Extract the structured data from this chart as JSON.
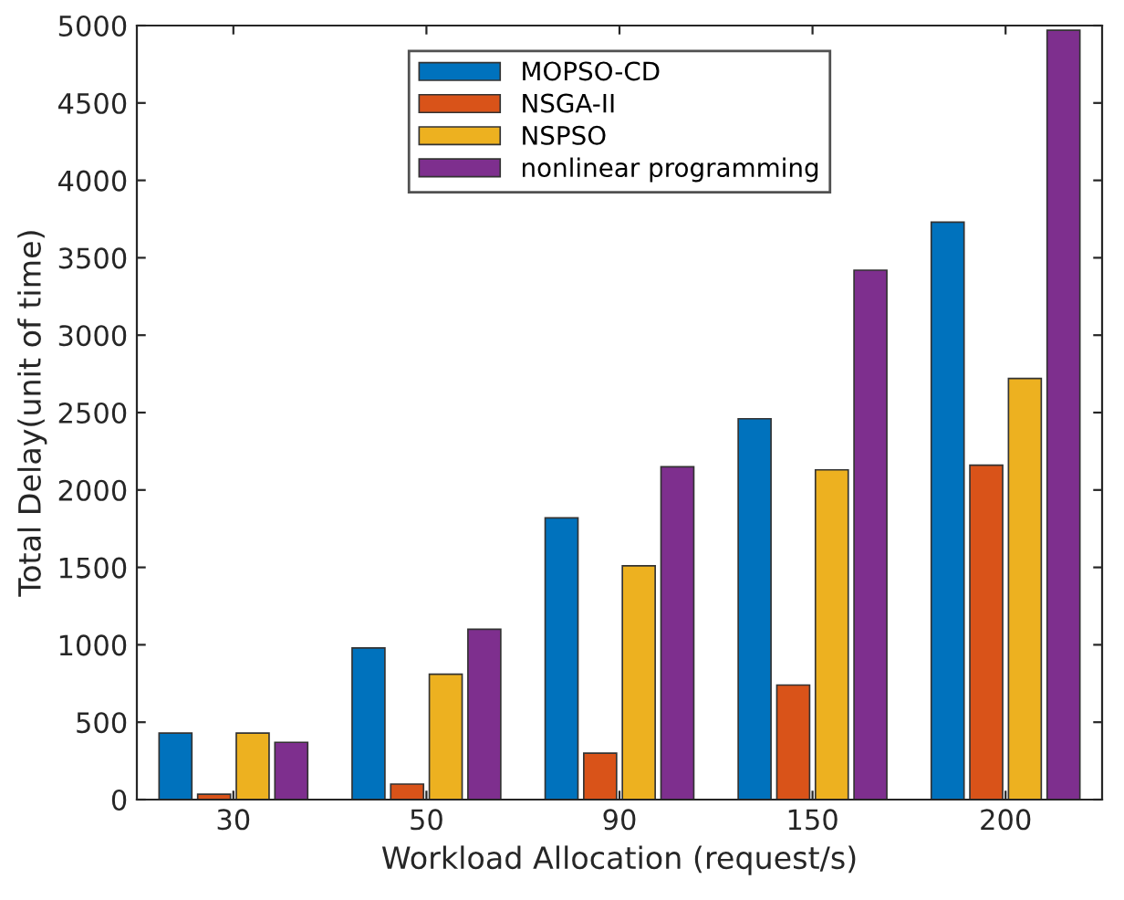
{
  "chart_data": {
    "type": "bar",
    "xlabel": "Workload Allocation (request/s)",
    "ylabel": "Total Delay(unit of time)",
    "categories": [
      "30",
      "50",
      "90",
      "150",
      "200"
    ],
    "series": [
      {
        "name": "MOPSO-CD",
        "color": "#0072bd",
        "values": [
          430,
          980,
          1820,
          2460,
          3730
        ]
      },
      {
        "name": "NSGA-II",
        "color": "#d95319",
        "values": [
          35,
          100,
          300,
          740,
          2160
        ]
      },
      {
        "name": "NSPSO",
        "color": "#edb120",
        "values": [
          430,
          810,
          1510,
          2130,
          2720
        ]
      },
      {
        "name": "nonlinear programming",
        "color": "#7e2f8e",
        "values": [
          370,
          1100,
          2150,
          3420,
          4970
        ]
      }
    ],
    "ylim": [
      0,
      5000
    ],
    "yticks": [
      0,
      500,
      1000,
      1500,
      2000,
      2500,
      3000,
      3500,
      4000,
      4500,
      5000
    ],
    "legend": "top",
    "grid": false
  }
}
